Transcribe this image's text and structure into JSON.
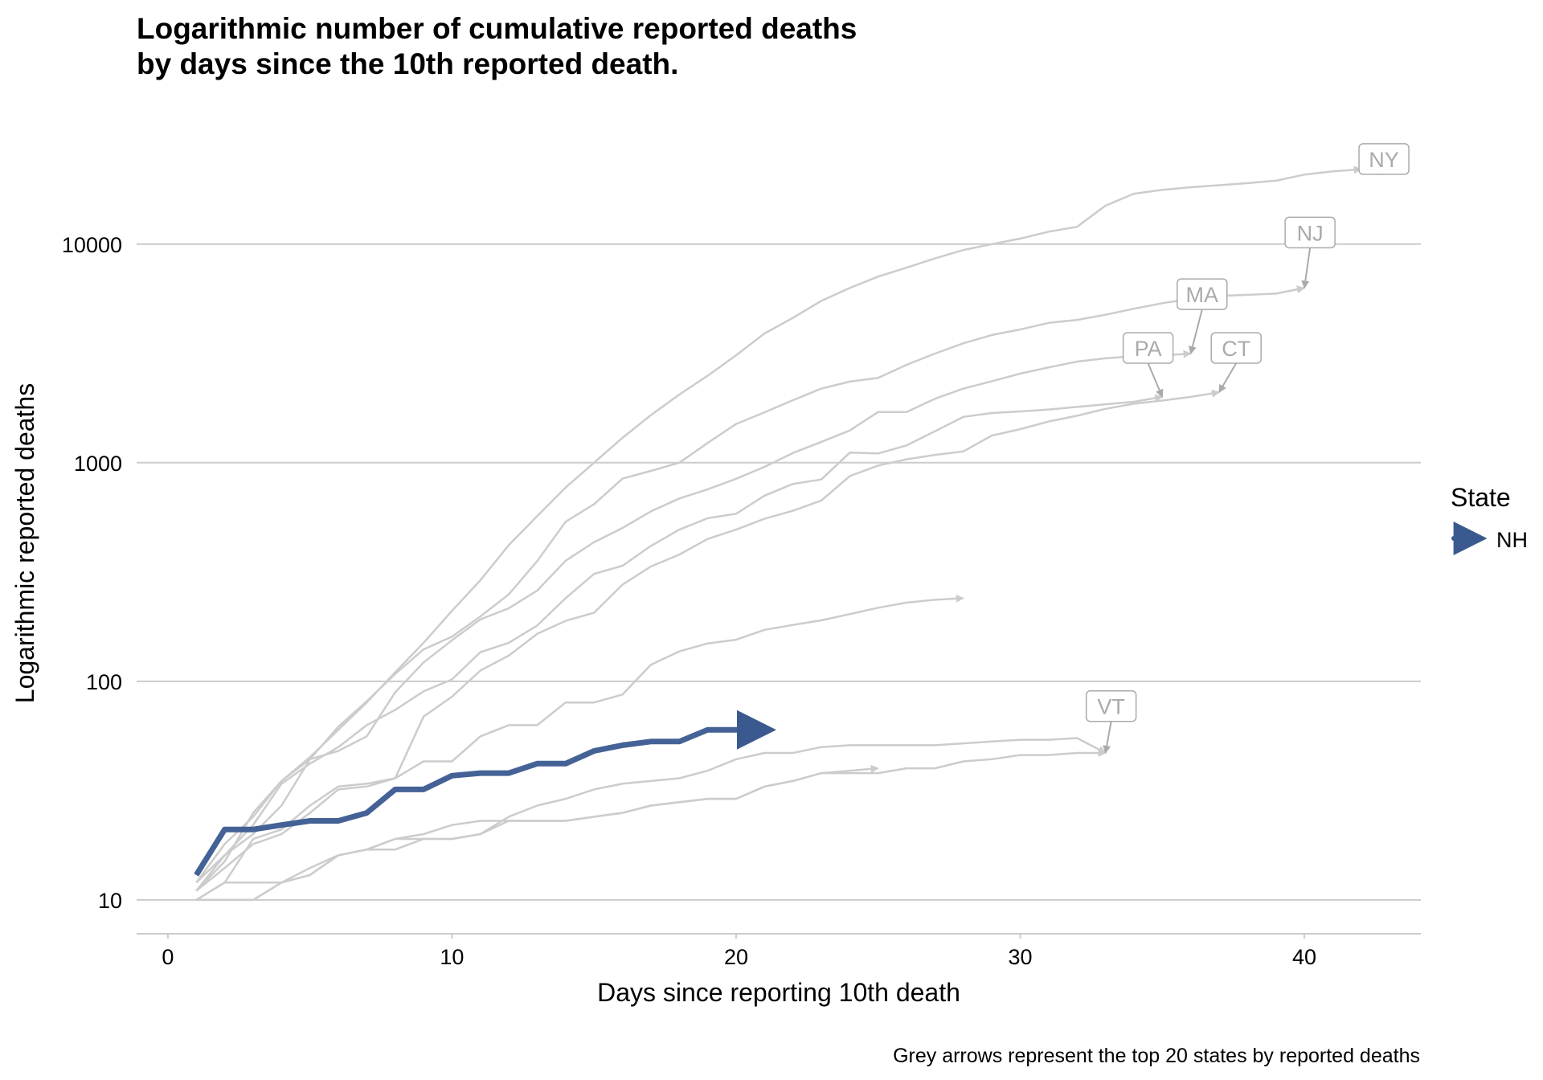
{
  "chart_data": {
    "type": "line",
    "title_lines": [
      "Logarithmic number of cumulative reported deaths",
      "by days since the 10th reported death."
    ],
    "xlabel": "Days since reporting 10th death",
    "ylabel": "Logarithmic reported deaths",
    "caption": "Grey arrows represent the top 20 states by reported deaths",
    "xlim": [
      -1.1,
      44.1
    ],
    "ylim": [
      7,
      40000
    ],
    "y_scale": "log10",
    "x_ticks": [
      0,
      10,
      20,
      30,
      40
    ],
    "y_ticks": [
      10,
      100,
      1000,
      10000
    ],
    "grid": "horizontal",
    "legend": {
      "title": "State",
      "position": "right",
      "entries": [
        {
          "name": "NH",
          "color": "#3a5a8f"
        }
      ]
    },
    "highlight_color": "#3a5a8f",
    "background_color": "#cccccc",
    "series": [
      {
        "name": "NH",
        "highlight": true,
        "x": [
          1,
          2,
          3,
          4,
          5,
          6,
          7,
          8,
          9,
          10,
          11,
          12,
          13,
          14,
          15,
          16,
          17,
          18,
          19,
          20,
          21
        ],
        "y": [
          13,
          21,
          21,
          22,
          23,
          23,
          25,
          32,
          32,
          37,
          38,
          38,
          42,
          42,
          48,
          51,
          53,
          53,
          60,
          60,
          60
        ]
      },
      {
        "name": "NY",
        "label": "NY",
        "label_at": [
          42.8,
          24500
        ],
        "x": [
          1,
          2,
          3,
          4,
          5,
          6,
          7,
          8,
          9,
          10,
          11,
          12,
          13,
          14,
          15,
          16,
          17,
          18,
          19,
          20,
          21,
          22,
          23,
          24,
          25,
          26,
          27,
          28,
          29,
          30,
          31,
          32,
          33,
          34,
          35,
          36,
          37,
          38,
          39,
          40,
          41,
          42
        ],
        "y": [
          12,
          18,
          24,
          35,
          45,
          60,
          80,
          110,
          150,
          210,
          290,
          420,
          570,
          770,
          1000,
          1300,
          1650,
          2050,
          2500,
          3100,
          3900,
          4600,
          5500,
          6300,
          7100,
          7800,
          8600,
          9400,
          10000,
          10600,
          11400,
          12000,
          15000,
          17000,
          17700,
          18200,
          18600,
          19000,
          19500,
          20800,
          21500,
          22000
        ]
      },
      {
        "name": "NJ",
        "label": "NJ",
        "label_at": [
          40.2,
          11300
        ],
        "x": [
          1,
          2,
          3,
          4,
          5,
          6,
          7,
          8,
          9,
          10,
          11,
          12,
          13,
          14,
          15,
          16,
          17,
          18,
          19,
          20,
          21,
          22,
          23,
          24,
          25,
          26,
          27,
          28,
          29,
          30,
          31,
          32,
          33,
          34,
          35,
          36,
          37,
          38,
          39,
          40
        ],
        "y": [
          11,
          16,
          20,
          27,
          44,
          62,
          81,
          108,
          140,
          160,
          198,
          250,
          355,
          537,
          646,
          846,
          917,
          1000,
          1232,
          1504,
          1700,
          1932,
          2183,
          2350,
          2443,
          2805,
          3156,
          3518,
          3840,
          4070,
          4362,
          4502,
          4753,
          5063,
          5368,
          5617,
          5790,
          5863,
          5938,
          6300
        ]
      },
      {
        "name": "MA",
        "label": "MA",
        "label_at": [
          36.4,
          5900
        ],
        "x": [
          1,
          2,
          3,
          4,
          5,
          6,
          7,
          8,
          9,
          10,
          11,
          12,
          13,
          14,
          15,
          16,
          17,
          18,
          19,
          20,
          21,
          22,
          23,
          24,
          25,
          26,
          27,
          28,
          29,
          30,
          31,
          32,
          33,
          34,
          35,
          36
        ],
        "y": [
          11,
          15,
          25,
          35,
          44,
          48,
          56,
          89,
          122,
          154,
          192,
          216,
          260,
          356,
          433,
          503,
          599,
          686,
          756,
          844,
          957,
          1108,
          1245,
          1404,
          1706,
          1706,
          1961,
          2182,
          2360,
          2556,
          2730,
          2900,
          3003,
          3071,
          3100,
          3153
        ]
      },
      {
        "name": "PA",
        "label": "PA",
        "label_at": [
          34.5,
          3350
        ],
        "x": [
          1,
          2,
          3,
          4,
          5,
          6,
          7,
          8,
          9,
          10,
          11,
          12,
          13,
          14,
          15,
          16,
          17,
          18,
          19,
          20,
          21,
          22,
          23,
          24,
          25,
          26,
          27,
          28,
          29,
          30,
          31,
          32,
          33,
          34,
          35
        ],
        "y": [
          12,
          16,
          22,
          34,
          42,
          50,
          63,
          74,
          90,
          102,
          136,
          150,
          180,
          240,
          310,
          338,
          416,
          494,
          557,
          584,
          707,
          800,
          838,
          1112,
          1102,
          1200,
          1394,
          1622,
          1687,
          1716,
          1752,
          1800,
          1850,
          1900,
          2000
        ]
      },
      {
        "name": "CT",
        "label": "CT",
        "label_at": [
          37.6,
          3350
        ],
        "x": [
          1,
          2,
          3,
          4,
          5,
          6,
          7,
          8,
          9,
          10,
          11,
          12,
          13,
          14,
          15,
          16,
          17,
          18,
          19,
          20,
          21,
          22,
          23,
          24,
          25,
          26,
          27,
          28,
          29,
          30,
          31,
          32,
          33,
          34,
          35,
          36,
          37
        ],
        "y": [
          10,
          12,
          19,
          21,
          27,
          33,
          34,
          36,
          69,
          85,
          112,
          131,
          165,
          189,
          206,
          277,
          335,
          380,
          448,
          494,
          554,
          603,
          671,
          868,
          971,
          1036,
          1086,
          1127,
          1331,
          1423,
          1544,
          1639,
          1764,
          1862,
          1924,
          2000,
          2100
        ]
      },
      {
        "name": "",
        "label": "",
        "x": [
          1,
          2,
          3,
          4,
          5,
          6,
          7,
          8,
          9,
          10,
          11,
          12,
          13,
          14,
          15,
          16,
          17,
          18,
          19,
          20,
          21,
          22,
          23,
          24,
          25,
          26,
          27,
          28
        ],
        "y": [
          11,
          14,
          18,
          20,
          25,
          32,
          33,
          36,
          43,
          43,
          56,
          63,
          63,
          80,
          80,
          87,
          119,
          137,
          149,
          155,
          172,
          181,
          190,
          203,
          217,
          229,
          236,
          240
        ]
      },
      {
        "name": "",
        "label": "",
        "x": [
          1,
          2,
          3,
          4,
          5,
          6,
          7,
          8,
          9,
          10,
          11,
          12,
          13,
          14,
          15,
          16,
          17,
          18,
          19,
          20,
          21,
          22,
          23,
          24,
          25
        ],
        "y": [
          10,
          10,
          10,
          12,
          14,
          16,
          17,
          19,
          20,
          22,
          23,
          23,
          23,
          23,
          24,
          25,
          27,
          28,
          29,
          29,
          33,
          35,
          38,
          39,
          40
        ]
      },
      {
        "name": "VT",
        "label": "VT",
        "label_at": [
          33.2,
          77
        ],
        "x": [
          1,
          2,
          3,
          4,
          5,
          6,
          7,
          8,
          9,
          10,
          11,
          12,
          13,
          14,
          15,
          16,
          17,
          18,
          19,
          20,
          21,
          22,
          23,
          24,
          25,
          26,
          27,
          28,
          29,
          30,
          31,
          32,
          33
        ],
        "y": [
          10,
          12,
          12,
          12,
          13,
          16,
          17,
          17,
          19,
          19,
          20,
          24,
          27,
          29,
          32,
          34,
          35,
          36,
          39,
          44,
          47,
          47,
          50,
          51,
          51,
          51,
          51,
          52,
          53,
          54,
          54,
          55,
          47
        ]
      },
      {
        "name": "",
        "label": "",
        "x": [
          1,
          2,
          3,
          4,
          5,
          6,
          7,
          8,
          9,
          10,
          11,
          12,
          13,
          14,
          15,
          16,
          17,
          18,
          19,
          20,
          21,
          22,
          23,
          24,
          25,
          26,
          27,
          28,
          29,
          30,
          31,
          32,
          33
        ],
        "y": [
          10,
          10,
          10,
          12,
          13,
          16,
          17,
          19,
          19,
          19,
          20,
          23,
          23,
          23,
          24,
          25,
          27,
          28,
          29,
          29,
          33,
          35,
          38,
          38,
          38,
          40,
          40,
          43,
          44,
          46,
          46,
          47,
          47
        ]
      }
    ]
  }
}
